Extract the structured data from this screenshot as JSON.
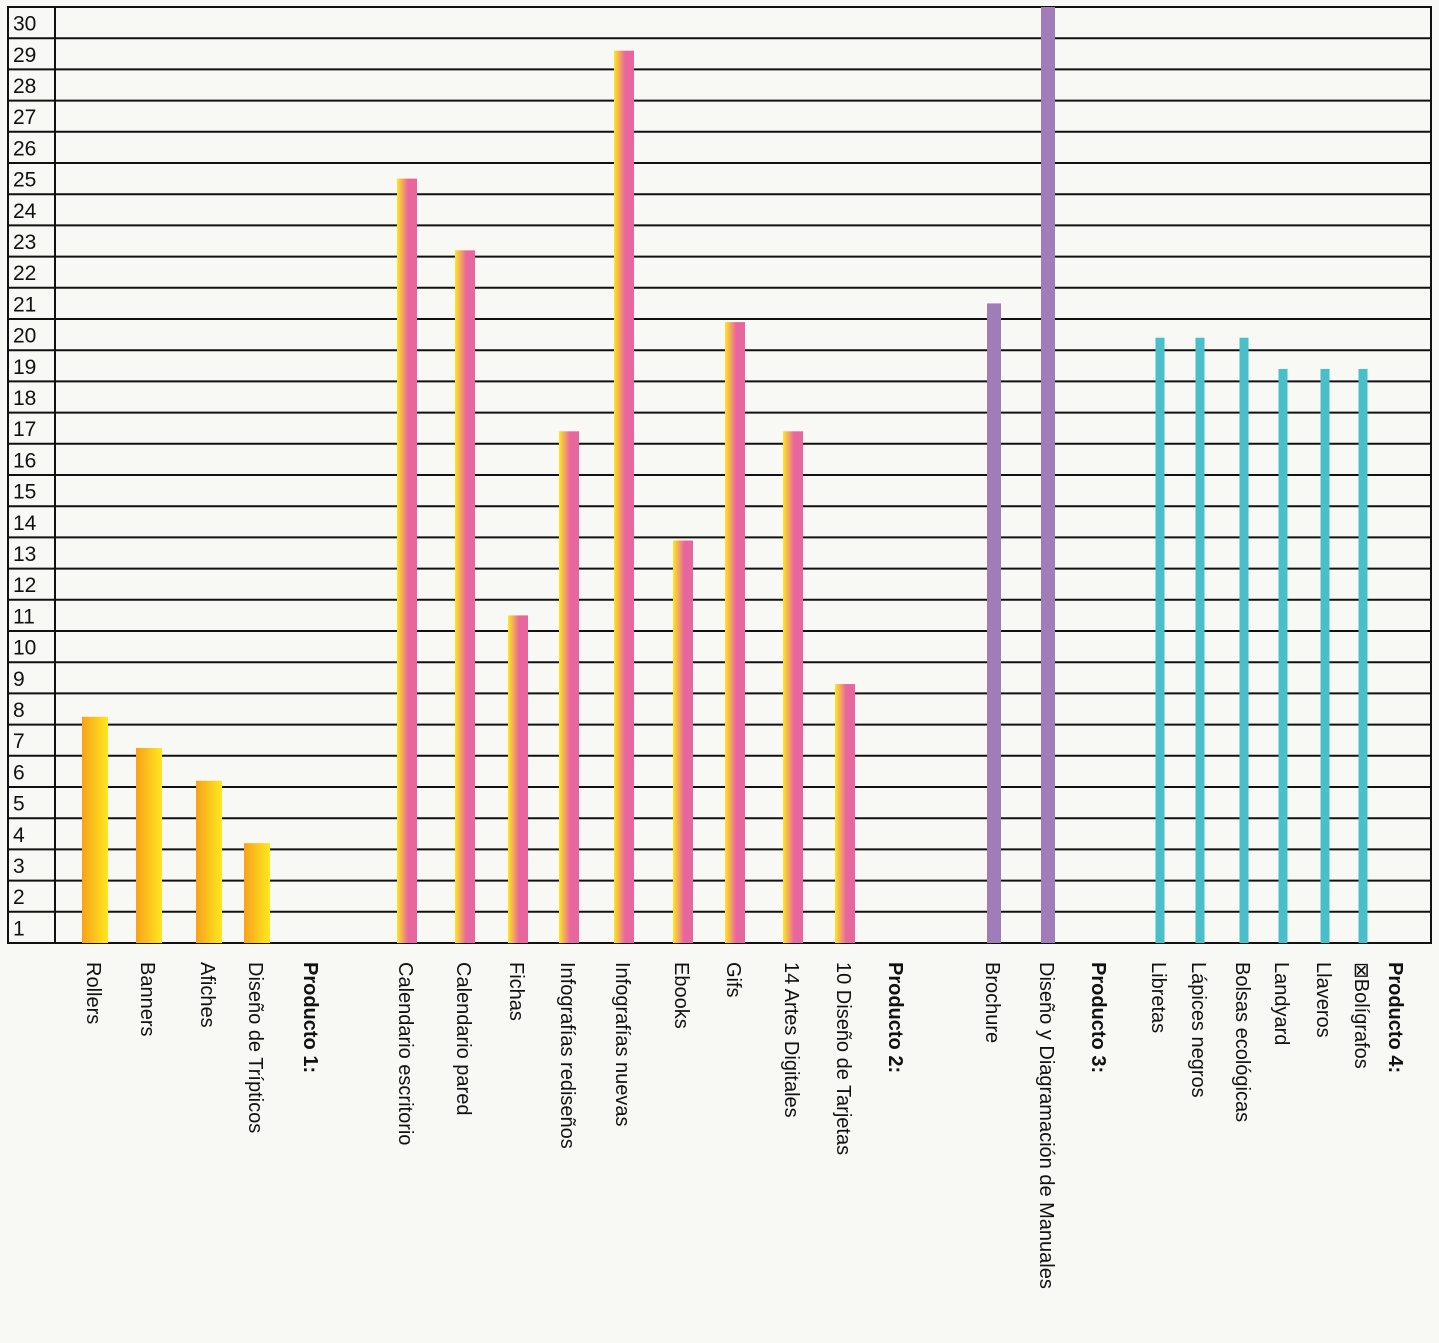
{
  "chart_data": {
    "type": "bar",
    "title": "",
    "xlabel": "",
    "ylabel": "",
    "ylim": [
      0,
      30
    ],
    "yticks": [
      1,
      2,
      3,
      4,
      5,
      6,
      7,
      8,
      9,
      10,
      11,
      12,
      13,
      14,
      15,
      16,
      17,
      18,
      19,
      20,
      21,
      22,
      23,
      24,
      25,
      26,
      27,
      28,
      29,
      30
    ],
    "grid": true,
    "legend": "none",
    "colors": {
      "product1_a": "#f7a21b",
      "product1_b": "#ffe81e",
      "product2_a": "#ffe81e",
      "product2_b": "#e8669e",
      "product3": "#a07cb8",
      "product4": "#4bbfc9"
    },
    "groups": [
      {
        "name": "Producto 1:",
        "series": "product1",
        "items": [
          {
            "label": "Rollers",
            "value": 7.25
          },
          {
            "label": "Banners",
            "value": 6.25
          },
          {
            "label": "Afiches",
            "value": 5.2
          },
          {
            "label": "Diseño de Trípticos",
            "value": 3.2
          }
        ]
      },
      {
        "name": "Producto 2:",
        "series": "product2",
        "items": [
          {
            "label": "Calendario escritorio",
            "value": 24.5
          },
          {
            "label": "Calendario pared",
            "value": 22.2
          },
          {
            "label": "Fichas",
            "value": 10.5
          },
          {
            "label": "Infografías rediseños",
            "value": 16.4
          },
          {
            "label": "Infografías nuevas",
            "value": 28.6
          },
          {
            "label": "Ebooks",
            "value": 12.9
          },
          {
            "label": "Gifs",
            "value": 19.9
          },
          {
            "label": "14  Artes Digitales",
            "value": 16.4
          },
          {
            "label": "10 Diseño de Tarjetas",
            "value": 8.3
          }
        ]
      },
      {
        "name": "Producto 3:",
        "series": "product3",
        "items": [
          {
            "label": "Brochure",
            "value": 20.5
          },
          {
            "label": "Diseño y Diagramación de Manuales",
            "value": 30
          }
        ]
      },
      {
        "name": "Producto 4:",
        "series": "product4",
        "items": [
          {
            "label": "Libretas",
            "value": 19.4
          },
          {
            "label": "Lápices negros",
            "value": 19.4
          },
          {
            "label": "Bolsas ecológicas",
            "value": 19.4
          },
          {
            "label": "Landyard",
            "value": 18.4
          },
          {
            "label": "Llaveros",
            "value": 18.4
          },
          {
            "label": "⊠Bolígrafos",
            "value": 18.4
          }
        ]
      }
    ]
  }
}
